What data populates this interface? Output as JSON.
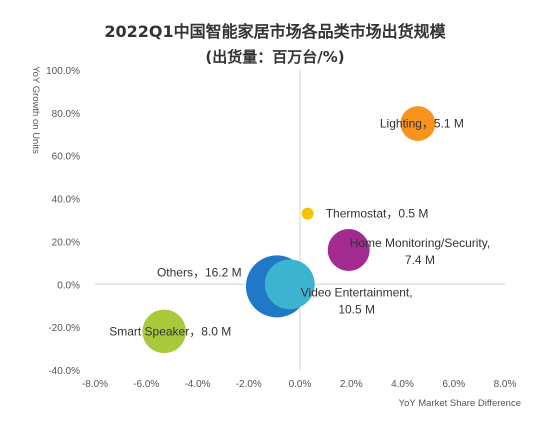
{
  "chart_data": {
    "type": "scatter",
    "title": "2022Q1中国智能家居市场各品类市场出货规模",
    "subtitle": "(出货量：百万台/%)",
    "xlabel": "YoY Market Share Difference",
    "ylabel": "YoY Growth on Units",
    "xlim": [
      -8,
      8
    ],
    "ylim": [
      -40,
      100
    ],
    "x_ticks": [
      "-8.0%",
      "-6.0%",
      "-4.0%",
      "-2.0%",
      "0.0%",
      "2.0%",
      "4.0%",
      "6.0%",
      "8.0%"
    ],
    "y_ticks": [
      "100.0%",
      "80.0%",
      "60.0%",
      "40.0%",
      "20.0%",
      "0.0%",
      "-20.0%",
      "-40.0%"
    ],
    "grid": false,
    "points": [
      {
        "label_lines": [
          "Lighting，5.1 M"
        ],
        "x": 4.6,
        "y": 75.0,
        "size": 5.1,
        "color": "#f7941d"
      },
      {
        "label_lines": [
          "Thermostat，0.5 M"
        ],
        "x": 0.3,
        "y": 33.0,
        "size": 0.5,
        "color": "#f5c400"
      },
      {
        "label_lines": [
          "Home Monitoring/Security,",
          "7.4 M"
        ],
        "x": 1.9,
        "y": 16.0,
        "size": 7.4,
        "color": "#a32a91"
      },
      {
        "label_lines": [
          "Others，16.2 M"
        ],
        "x": -0.9,
        "y": -1.0,
        "size": 16.2,
        "color": "#1f78c8"
      },
      {
        "label_lines": [
          "Video Entertainment,",
          "10.5 M"
        ],
        "x": -0.4,
        "y": 0.0,
        "size": 10.5,
        "color": "#3cb4cf"
      },
      {
        "label_lines": [
          "Smart Speaker，8.0 M"
        ],
        "x": -5.3,
        "y": -22.0,
        "size": 8.0,
        "color": "#a8c93a"
      }
    ]
  }
}
